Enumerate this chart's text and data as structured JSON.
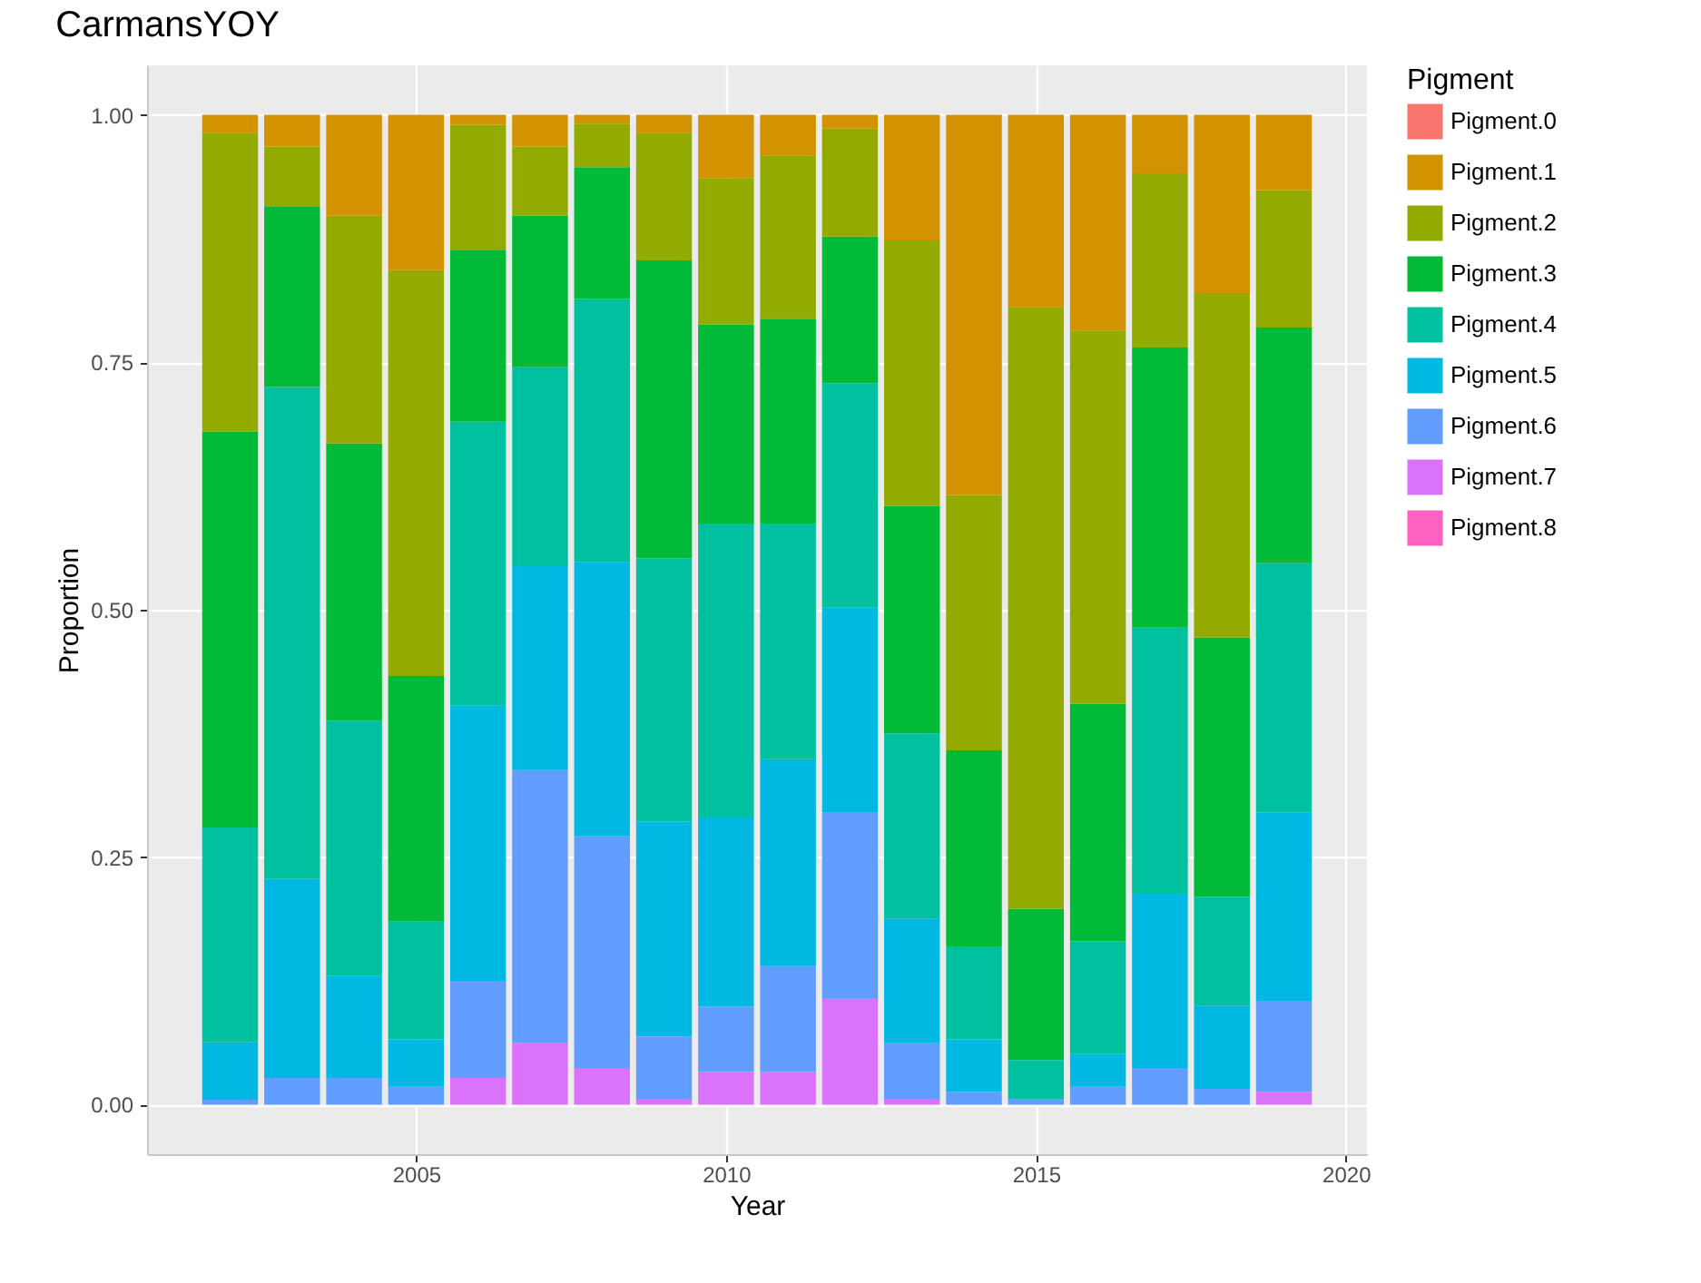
{
  "chart_data": {
    "type": "bar",
    "title": "CarmansYOY",
    "xlabel": "Year",
    "ylabel": "Proportion",
    "legend_title": "Pigment",
    "stacked": true,
    "grid": true,
    "legend": "right",
    "x": [
      2002,
      2003,
      2004,
      2005,
      2006,
      2007,
      2008,
      2009,
      2010,
      2011,
      2012,
      2013,
      2014,
      2015,
      2016,
      2017,
      2018,
      2019
    ],
    "xlim": [
      2000.66,
      2020.34
    ],
    "xticks": [
      2005,
      2010,
      2015,
      2020
    ],
    "ylim": [
      -0.05,
      1.05
    ],
    "yticks": [
      {
        "value": 0,
        "label": "0.00"
      },
      {
        "value": 0.25,
        "label": "0.25"
      },
      {
        "value": 0.5,
        "label": "0.50"
      },
      {
        "value": 0.75,
        "label": "0.75"
      },
      {
        "value": 1,
        "label": "1.00"
      }
    ],
    "series": [
      {
        "name": "Pigment.8",
        "color": "#ff61c3",
        "values": [
          0,
          0,
          0,
          0,
          0,
          0,
          0,
          0,
          0,
          0,
          0,
          0,
          0,
          0,
          0,
          0,
          0,
          0
        ]
      },
      {
        "name": "Pigment.7",
        "color": "#db72fb",
        "values": [
          0,
          0,
          0,
          0,
          0.027,
          0.062,
          0.037,
          0.006,
          0.033,
          0.033,
          0.107,
          0.006,
          0,
          0,
          0,
          0,
          0,
          0.013
        ]
      },
      {
        "name": "Pigment.6",
        "color": "#619cff",
        "values": [
          0.005,
          0.027,
          0.027,
          0.018,
          0.098,
          0.276,
          0.234,
          0.063,
          0.066,
          0.107,
          0.188,
          0.056,
          0.013,
          0.006,
          0.018,
          0.037,
          0.016,
          0.092
        ]
      },
      {
        "name": "Pigment.5",
        "color": "#00b9e3",
        "values": [
          0.058,
          0.201,
          0.103,
          0.048,
          0.278,
          0.207,
          0.277,
          0.217,
          0.191,
          0.209,
          0.207,
          0.126,
          0.053,
          0,
          0.033,
          0.176,
          0.084,
          0.19
        ]
      },
      {
        "name": "Pigment.4",
        "color": "#00c19f",
        "values": [
          0.217,
          0.497,
          0.258,
          0.119,
          0.287,
          0.2,
          0.266,
          0.266,
          0.297,
          0.238,
          0.227,
          0.187,
          0.094,
          0.039,
          0.114,
          0.269,
          0.11,
          0.252
        ]
      },
      {
        "name": "Pigment.3",
        "color": "#00ba38",
        "values": [
          0.4,
          0.182,
          0.28,
          0.248,
          0.173,
          0.153,
          0.133,
          0.301,
          0.201,
          0.207,
          0.148,
          0.23,
          0.198,
          0.153,
          0.24,
          0.283,
          0.262,
          0.238
        ]
      },
      {
        "name": "Pigment.2",
        "color": "#93aa00",
        "values": [
          0.302,
          0.061,
          0.23,
          0.41,
          0.127,
          0.07,
          0.044,
          0.129,
          0.148,
          0.165,
          0.109,
          0.268,
          0.258,
          0.608,
          0.377,
          0.176,
          0.348,
          0.139
        ]
      },
      {
        "name": "Pigment.1",
        "color": "#d39200",
        "values": [
          0.018,
          0.032,
          0.102,
          0.157,
          0.01,
          0.032,
          0.009,
          0.018,
          0.064,
          0.041,
          0.014,
          0.127,
          0.384,
          0.194,
          0.218,
          0.059,
          0.18,
          0.076
        ]
      },
      {
        "name": "Pigment.0",
        "color": "#f8766d",
        "values": [
          0,
          0,
          0,
          0,
          0,
          0,
          0,
          0,
          0,
          0,
          0,
          0,
          0,
          0,
          0,
          0,
          0,
          0
        ]
      }
    ]
  }
}
